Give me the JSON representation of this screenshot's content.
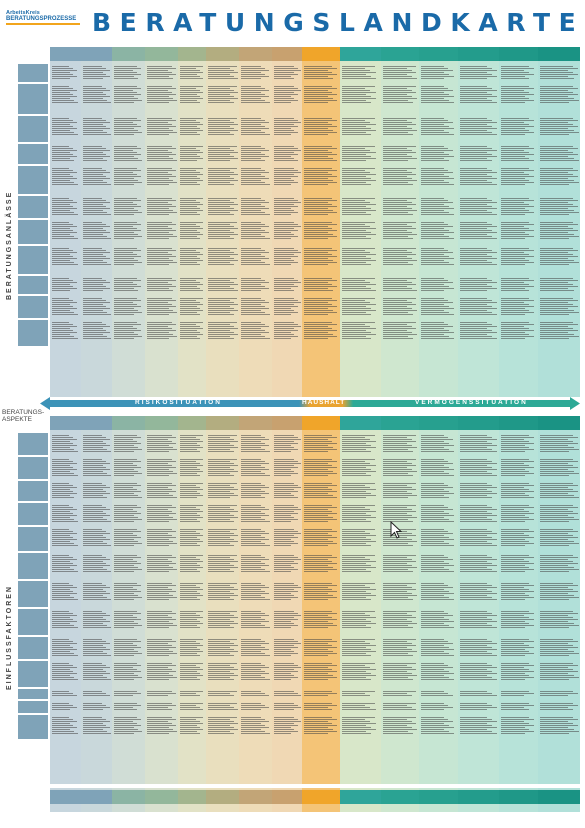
{
  "logo": {
    "line1": "ArbeitsKreis",
    "line2": "BERATUNGSPROZESSE"
  },
  "title": "BERATUNGSLANDKARTE",
  "side_labels": {
    "top": "BERATUNGSANLÄSSE",
    "bottom": "EINFLUSSFAKTOREN",
    "aspects": "BERATUNGS-\nASPEKTE"
  },
  "bands": {
    "risiko": "RISIKOSITUATION",
    "haushalt": "HAUSHALT",
    "vermoegen": "VERMÖGENSSITUATION"
  },
  "colors": {
    "columns": [
      "#c7d6de",
      "#c9d8db",
      "#d0ddd6",
      "#d9e1cf",
      "#e2e2c6",
      "#e9dfbe",
      "#eedcb8",
      "#f0d8b4",
      "#f4c477",
      "#d8e7c9",
      "#cfe7cf",
      "#c6e6d3",
      "#bfe5d7",
      "#b7e3d9",
      "#b1e0d9"
    ],
    "headers": [
      "#7fa3b8",
      "#7fa3b8",
      "#8bb4a4",
      "#93b79b",
      "#a3b58e",
      "#b3ad80",
      "#c2a577",
      "#c8a16f",
      "#f0a52a",
      "#2fa59a",
      "#2aa393",
      "#27a08f",
      "#239c8c",
      "#1f9888",
      "#1a9384"
    ],
    "arrow_left": "#3c93b8",
    "arrow_right": "#2da996",
    "title": "#1a6aa8"
  }
}
